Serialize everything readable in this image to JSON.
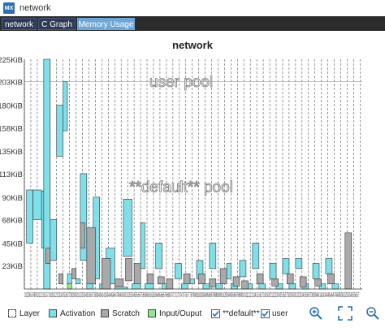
{
  "window": {
    "app_icon_text": "MX",
    "title": "network"
  },
  "tabs": [
    {
      "label": "network",
      "active": false
    },
    {
      "label": "C Graph",
      "active": false
    },
    {
      "label": "Memory Usage",
      "active": true
    }
  ],
  "chart_data": {
    "type": "bar",
    "title": "network",
    "xlabel": "",
    "ylabel": "",
    "ylim": [
      0,
      225
    ],
    "y_unit": "KiB",
    "yticks": [
      "225KiB",
      "203KiB",
      "180KiB",
      "158KiB",
      "135KiB",
      "113KiB",
      "90KiB",
      "68KiB",
      "45KiB",
      "23KiB"
    ],
    "ytick_values": [
      225,
      203,
      180,
      158,
      135,
      113,
      90,
      68,
      45,
      23
    ],
    "x_step_count": 157,
    "x_tick_label_text": "0123456789101213151718192122232425262728293031323334353637383940414243444546474849505152535455565758596061626364656667686970717273747576777879808182838485868788899091929394959697989910011112131415161718192021222324252627282930313233343536373839404142434445464748495051525354555657",
    "annotations": [
      {
        "text": "user pool",
        "y": 198
      },
      {
        "text": "**default** pool",
        "y": 95
      }
    ],
    "pool_boundary_y": 203,
    "legend": [
      {
        "label": "Layer",
        "color": "#ffffff",
        "kind": "dashed"
      },
      {
        "label": "Activation",
        "color": "#7fe0ea"
      },
      {
        "label": "Scratch",
        "color": "#a9a9a9"
      },
      {
        "label": "Input/Ouput",
        "color": "#90e890"
      },
      {
        "label": "**default**",
        "kind": "checkbox"
      },
      {
        "label": "user",
        "kind": "checkbox"
      }
    ],
    "series": [
      {
        "name": "Activation",
        "color": "#7fe0ea",
        "rects": [
          [
            1,
            4,
            45,
            97
          ],
          [
            4,
            8,
            68,
            97
          ],
          [
            8,
            10,
            40,
            96
          ],
          [
            9,
            12,
            0,
            225
          ],
          [
            12,
            15,
            28,
            68
          ],
          [
            15,
            18,
            130,
            180
          ],
          [
            18,
            20,
            155,
            203
          ],
          [
            20,
            22,
            5,
            15
          ],
          [
            24,
            26,
            5,
            10
          ],
          [
            26,
            29,
            28,
            113
          ],
          [
            29,
            32,
            0,
            5
          ],
          [
            32,
            35,
            10,
            90
          ],
          [
            35,
            38,
            0,
            5
          ],
          [
            38,
            42,
            5,
            40
          ],
          [
            42,
            48,
            0,
            2
          ],
          [
            46,
            50,
            32,
            88
          ],
          [
            50,
            54,
            0,
            5
          ],
          [
            54,
            56,
            20,
            65
          ],
          [
            56,
            60,
            0,
            5
          ],
          [
            61,
            64,
            20,
            45
          ],
          [
            64,
            68,
            0,
            5
          ],
          [
            70,
            73,
            10,
            25
          ],
          [
            73,
            76,
            0,
            5
          ],
          [
            76,
            79,
            5,
            10
          ],
          [
            80,
            83,
            10,
            28
          ],
          [
            83,
            86,
            0,
            5
          ],
          [
            86,
            89,
            20,
            45
          ],
          [
            89,
            92,
            0,
            5
          ],
          [
            94,
            96,
            10,
            25
          ],
          [
            96,
            99,
            0,
            5
          ],
          [
            100,
            103,
            12,
            28
          ],
          [
            103,
            106,
            0,
            5
          ],
          [
            106,
            109,
            20,
            45
          ],
          [
            109,
            112,
            0,
            5
          ],
          [
            114,
            117,
            10,
            25
          ],
          [
            117,
            120,
            0,
            5
          ],
          [
            120,
            123,
            15,
            30
          ],
          [
            123,
            126,
            0,
            5
          ],
          [
            126,
            129,
            20,
            30
          ],
          [
            129,
            132,
            0,
            5
          ],
          [
            134,
            137,
            10,
            25
          ],
          [
            137,
            140,
            0,
            5
          ],
          [
            140,
            143,
            15,
            30
          ],
          [
            143,
            146,
            0,
            5
          ]
        ]
      },
      {
        "name": "Scratch",
        "color": "#a9a9a9",
        "rects": [
          [
            10,
            12,
            25,
            40
          ],
          [
            16,
            18,
            5,
            15
          ],
          [
            22,
            24,
            10,
            20
          ],
          [
            26,
            28,
            40,
            65
          ],
          [
            29,
            33,
            5,
            60
          ],
          [
            36,
            40,
            0,
            30
          ],
          [
            42,
            46,
            3,
            10
          ],
          [
            47,
            50,
            8,
            30
          ],
          [
            51,
            54,
            5,
            25
          ],
          [
            57,
            60,
            5,
            15
          ],
          [
            62,
            65,
            5,
            12
          ],
          [
            66,
            69,
            0,
            10
          ],
          [
            74,
            77,
            5,
            15
          ],
          [
            81,
            84,
            5,
            15
          ],
          [
            86,
            89,
            2,
            10
          ],
          [
            91,
            94,
            5,
            20
          ],
          [
            97,
            100,
            3,
            12
          ],
          [
            101,
            104,
            0,
            8
          ],
          [
            108,
            111,
            5,
            15
          ],
          [
            115,
            118,
            3,
            10
          ],
          [
            122,
            125,
            5,
            15
          ],
          [
            128,
            131,
            2,
            12
          ],
          [
            135,
            138,
            3,
            10
          ],
          [
            141,
            144,
            5,
            15
          ],
          [
            149,
            152,
            0,
            55
          ]
        ]
      },
      {
        "name": "Input/Ouput",
        "color": "#90e890",
        "rects": [
          [
            20,
            22,
            0,
            5
          ]
        ]
      }
    ]
  },
  "toolbar": {
    "zoom_in_icon": "magnifier-plus-icon",
    "fit_icon": "expand-corners-icon",
    "zoom_out_icon": "magnifier-minus-icon"
  }
}
